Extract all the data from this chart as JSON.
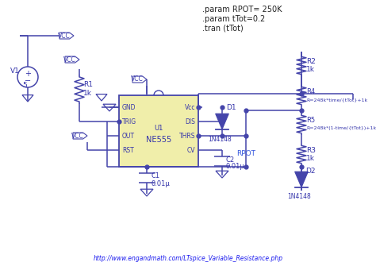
{
  "bg_color": "#ffffff",
  "line_color": "#4444aa",
  "chip_fill": "#f0eeaa",
  "chip_border": "#4444aa",
  "text_color": "#3333aa",
  "link_color": "#1a1aee",
  "url_text": "http://www.engandmath.com/LTspice_Variable_Resistance.php",
  "chip_label": "NE555",
  "chip_ref": "U1",
  "chip_pins_left": [
    "GND",
    "TRIG",
    "OUT",
    "RST"
  ],
  "chip_pins_right": [
    "Vcc",
    "DIS",
    "THRS",
    "CV"
  ],
  "param1": ".param RPOT= 250K",
  "param2": ".param tTot=0.2",
  "param3": ".tran (tTot)",
  "r4_val": "R=248k*time/{tTot}+1k",
  "r5_val": "R=248k*(1-time/{tTot})+1k",
  "rpot_label": "RPOT"
}
